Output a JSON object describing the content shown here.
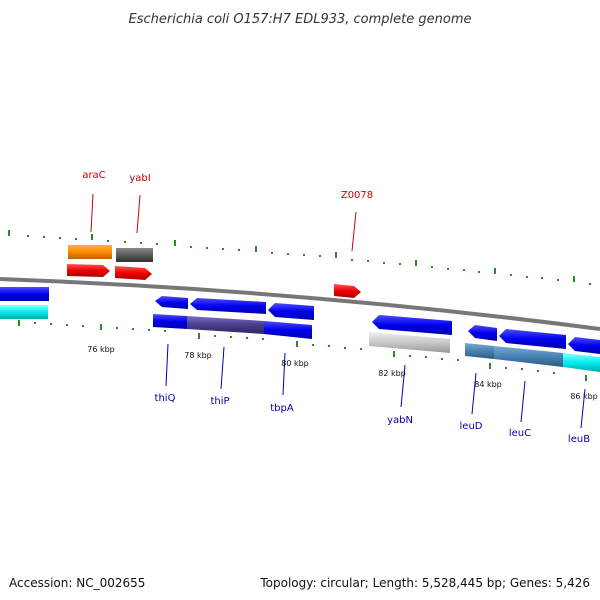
{
  "title": "Escherichia coli O157:H7 EDL933, complete genome",
  "footer": {
    "accession": "Accession: NC_002655",
    "summary": "Topology: circular; Length: 5,528,445 bp; Genes: 5,426"
  },
  "colors": {
    "backbone": "#777777",
    "tick": "#2a8a2a",
    "label_forward": "#cc0000",
    "label_reverse": "#0000aa"
  },
  "scale_labels": [
    {
      "text": "76 kbp",
      "kbp": 76
    },
    {
      "text": "78 kbp",
      "kbp": 78
    },
    {
      "text": "80 kbp",
      "kbp": 80
    },
    {
      "text": "82 kbp",
      "kbp": 82
    },
    {
      "text": "84 kbp",
      "kbp": 84
    },
    {
      "text": "86 kbp",
      "kbp": 86
    }
  ],
  "forward_labels": [
    "araC",
    "yabI",
    "Z0078"
  ],
  "reverse_labels": [
    "thiQ",
    "thiP",
    "tbpA",
    "yabN",
    "leuD",
    "leuC",
    "leuB"
  ]
}
